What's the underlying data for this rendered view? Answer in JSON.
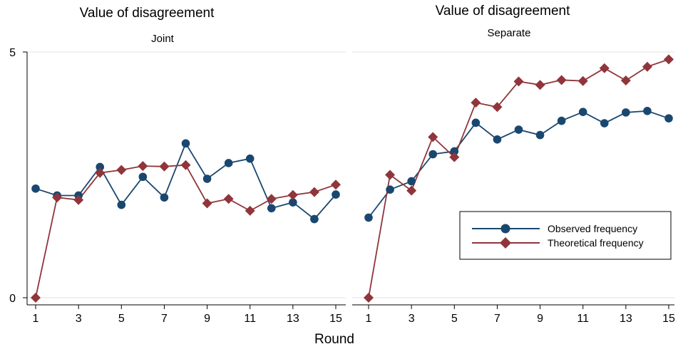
{
  "chart_data": [
    {
      "type": "line",
      "title": "Value of disagreement",
      "panel": "Joint",
      "x": [
        1,
        2,
        3,
        4,
        5,
        6,
        7,
        8,
        9,
        10,
        11,
        12,
        13,
        14,
        15
      ],
      "xticks": [
        "1",
        "3",
        "5",
        "7",
        "9",
        "11",
        "13",
        "15"
      ],
      "yticks": [
        "0",
        "5"
      ],
      "ylim": [
        0,
        5
      ],
      "xlabel": "Round",
      "grid": "horizontal",
      "series": [
        {
          "name": "Observed frequency",
          "color": "#1a476f",
          "marker": "circle",
          "values": [
            2.22,
            2.08,
            2.08,
            2.66,
            1.89,
            2.46,
            2.04,
            3.14,
            2.42,
            2.74,
            2.83,
            1.82,
            1.94,
            1.6,
            2.1
          ]
        },
        {
          "name": "Theoretical frequency",
          "color": "#90353b",
          "marker": "diamond",
          "values": [
            0.0,
            2.04,
            1.99,
            2.54,
            2.6,
            2.68,
            2.67,
            2.7,
            1.92,
            2.01,
            1.77,
            2.01,
            2.09,
            2.15,
            2.3
          ]
        }
      ]
    },
    {
      "type": "line",
      "title": "Value of disagreement",
      "panel": "Separate",
      "x": [
        1,
        2,
        3,
        4,
        5,
        6,
        7,
        8,
        9,
        10,
        11,
        12,
        13,
        14,
        15
      ],
      "xticks": [
        "1",
        "3",
        "5",
        "7",
        "9",
        "11",
        "13",
        "15"
      ],
      "ylim": [
        0,
        5
      ],
      "grid": "horizontal",
      "legend": {
        "position": "bottom-right",
        "entries": [
          "Observed frequency",
          "Theoretical frequency"
        ]
      },
      "series": [
        {
          "name": "Observed frequency",
          "color": "#1a476f",
          "marker": "circle",
          "values": [
            1.63,
            2.2,
            2.37,
            2.92,
            2.98,
            3.56,
            3.22,
            3.42,
            3.31,
            3.6,
            3.78,
            3.55,
            3.77,
            3.8,
            3.65
          ]
        },
        {
          "name": "Theoretical frequency",
          "color": "#90353b",
          "marker": "diamond",
          "values": [
            0.0,
            2.5,
            2.18,
            3.27,
            2.86,
            3.97,
            3.88,
            4.4,
            4.33,
            4.43,
            4.41,
            4.67,
            4.42,
            4.7,
            4.85
          ]
        }
      ]
    }
  ]
}
